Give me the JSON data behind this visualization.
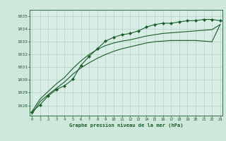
{
  "title": "Graphe pression niveau de la mer (hPa)",
  "background_color": "#cfe8dc",
  "plot_bg_color": "#d8ede5",
  "grid_color": "#b0ccbe",
  "line_color": "#1a5c2a",
  "x_ticks": [
    0,
    1,
    2,
    3,
    4,
    5,
    6,
    7,
    8,
    9,
    10,
    11,
    12,
    13,
    14,
    15,
    16,
    17,
    18,
    19,
    20,
    21,
    22,
    23
  ],
  "ylim": [
    1027.2,
    1035.5
  ],
  "yticks": [
    1028,
    1029,
    1030,
    1031,
    1032,
    1033,
    1034,
    1035
  ],
  "series1": [
    1027.5,
    1028.05,
    1028.75,
    1029.25,
    1029.55,
    1030.05,
    1031.15,
    1031.85,
    1032.45,
    1033.05,
    1033.35,
    1033.55,
    1033.65,
    1033.85,
    1034.15,
    1034.35,
    1034.45,
    1034.45,
    1034.55,
    1034.65,
    1034.65,
    1034.75,
    1034.75,
    1034.65
  ],
  "series2": [
    1027.5,
    1028.5,
    1029.1,
    1029.7,
    1030.2,
    1030.9,
    1031.5,
    1032.0,
    1032.4,
    1032.7,
    1032.9,
    1033.05,
    1033.15,
    1033.3,
    1033.45,
    1033.55,
    1033.65,
    1033.7,
    1033.75,
    1033.8,
    1033.85,
    1033.9,
    1033.95,
    1034.35
  ],
  "series3": [
    1027.3,
    1028.3,
    1028.85,
    1029.35,
    1029.85,
    1030.45,
    1030.95,
    1031.35,
    1031.7,
    1032.0,
    1032.25,
    1032.45,
    1032.6,
    1032.75,
    1032.9,
    1033.0,
    1033.05,
    1033.1,
    1033.1,
    1033.1,
    1033.1,
    1033.05,
    1033.0,
    1034.35
  ],
  "figwidth": 3.2,
  "figheight": 2.0,
  "dpi": 100
}
